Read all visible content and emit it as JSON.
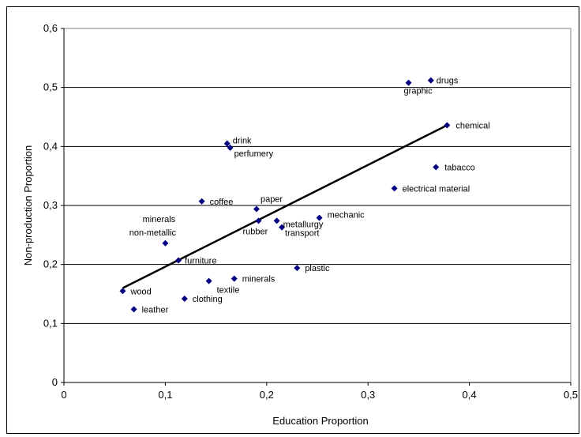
{
  "chart_data": {
    "type": "scatter",
    "xlabel": "Education Proportion",
    "ylabel": "Non-production Proportion",
    "xlim": [
      0,
      0.5
    ],
    "ylim": [
      0,
      0.6
    ],
    "x_ticks": [
      "0",
      "0,1",
      "0,2",
      "0,3",
      "0,4",
      "0,5"
    ],
    "y_ticks": [
      "0",
      "0,1",
      "0,2",
      "0,3",
      "0,4",
      "0,5",
      "0,6"
    ],
    "grid": "horizontal",
    "marker_color": "#000080",
    "points": [
      {
        "label": "drugs",
        "x": 0.362,
        "y": 0.512
      },
      {
        "label": "graphic",
        "x": 0.34,
        "y": 0.508
      },
      {
        "label": "chemical",
        "x": 0.378,
        "y": 0.436
      },
      {
        "label": "tabacco",
        "x": 0.367,
        "y": 0.365
      },
      {
        "label": "electrical material",
        "x": 0.326,
        "y": 0.329
      },
      {
        "label": "drink",
        "x": 0.161,
        "y": 0.405
      },
      {
        "label": "perfumery",
        "x": 0.164,
        "y": 0.398
      },
      {
        "label": "coffee",
        "x": 0.136,
        "y": 0.307
      },
      {
        "label": "paper",
        "x": 0.19,
        "y": 0.294
      },
      {
        "label": "rubber",
        "x": 0.192,
        "y": 0.274
      },
      {
        "label": "metallurgy",
        "x": 0.21,
        "y": 0.274
      },
      {
        "label": "transport",
        "x": 0.215,
        "y": 0.263
      },
      {
        "label": "mechanic",
        "x": 0.252,
        "y": 0.279
      },
      {
        "label": "minerals non-metallic",
        "x": 0.1,
        "y": 0.236
      },
      {
        "label": "furniture",
        "x": 0.113,
        "y": 0.207
      },
      {
        "label": "plastic",
        "x": 0.23,
        "y": 0.194
      },
      {
        "label": "minerals",
        "x": 0.168,
        "y": 0.176
      },
      {
        "label": "textile",
        "x": 0.143,
        "y": 0.172
      },
      {
        "label": "clothing",
        "x": 0.119,
        "y": 0.142
      },
      {
        "label": "wood",
        "x": 0.058,
        "y": 0.155
      },
      {
        "label": "leather",
        "x": 0.069,
        "y": 0.124
      }
    ],
    "trendline": {
      "x": [
        0.058,
        0.378
      ],
      "y": [
        0.16,
        0.436
      ]
    }
  }
}
